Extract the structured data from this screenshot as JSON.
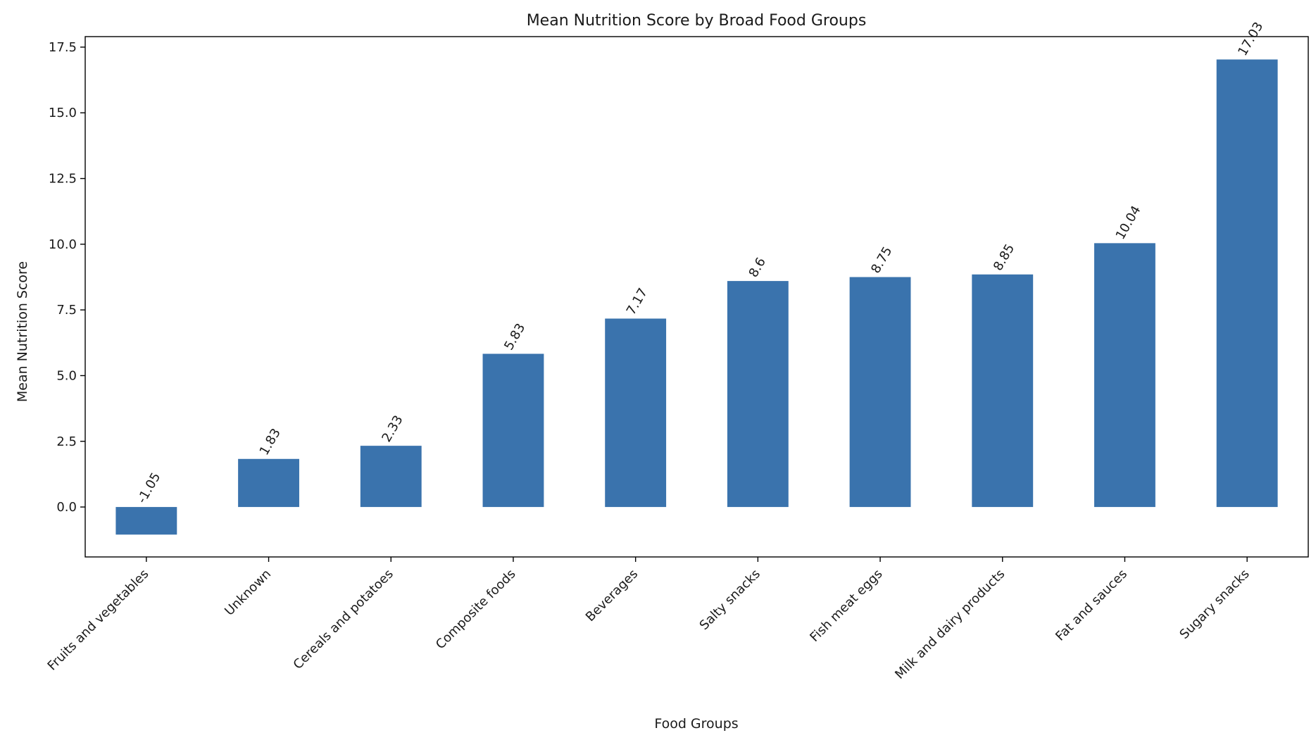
{
  "chart_data": {
    "type": "bar",
    "title": "Mean Nutrition Score by Broad Food Groups",
    "xlabel": "Food Groups",
    "ylabel": "Mean Nutrition Score",
    "ylim": [
      -1.9,
      17.9
    ],
    "yticks": [
      0.0,
      2.5,
      5.0,
      7.5,
      10.0,
      12.5,
      15.0,
      17.5
    ],
    "ytick_labels": [
      "0.0",
      "2.5",
      "5.0",
      "7.5",
      "10.0",
      "12.5",
      "15.0",
      "17.5"
    ],
    "grid": false,
    "bar_color": "#3a73ad",
    "categories": [
      "Fruits and vegetables",
      "Unknown",
      "Cereals and potatoes",
      "Composite foods",
      "Beverages",
      "Salty snacks",
      "Fish meat eggs",
      "Milk and dairy products",
      "Fat and sauces",
      "Sugary snacks"
    ],
    "values": [
      -1.05,
      1.83,
      2.33,
      5.83,
      7.17,
      8.6,
      8.75,
      8.85,
      10.04,
      17.03
    ],
    "value_labels": [
      "-1.05",
      "1.83",
      "2.33",
      "5.83",
      "7.17",
      "8.6",
      "8.75",
      "8.85",
      "10.04",
      "17.03"
    ]
  }
}
